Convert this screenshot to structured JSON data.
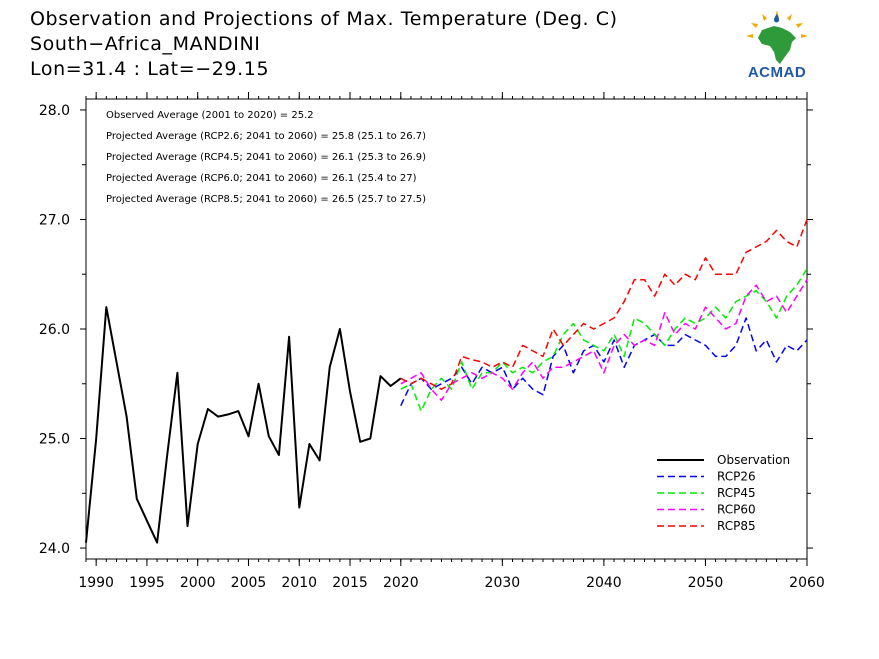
{
  "header": {
    "title_line1": "Observation and Projections of Max. Temperature (Deg. C)",
    "title_line2": "South−Africa_MANDINI",
    "title_line3": "Lon=31.4 : Lat=−29.15"
  },
  "logo": {
    "text": "ACMAD",
    "icon": "acmad-africa-logo-icon"
  },
  "chart_data": {
    "type": "line",
    "xlim": [
      1989,
      2060
    ],
    "ylim": [
      23.9,
      28.1
    ],
    "x_ticks": [
      {
        "value": 1990,
        "label": "1990"
      },
      {
        "value": 1995,
        "label": "1995"
      },
      {
        "value": 2000,
        "label": "2000"
      },
      {
        "value": 2005,
        "label": "2005"
      },
      {
        "value": 2010,
        "label": "2010"
      },
      {
        "value": 2015,
        "label": "2015"
      },
      {
        "value": 2020,
        "label": "2020"
      },
      {
        "value": 2030,
        "label": "2030"
      },
      {
        "value": 2040,
        "label": "2040"
      },
      {
        "value": 2050,
        "label": "2050"
      },
      {
        "value": 2060,
        "label": "2060"
      }
    ],
    "y_ticks": [
      {
        "value": 24,
        "label": "24.0"
      },
      {
        "value": 25,
        "label": "25.0"
      },
      {
        "value": 26,
        "label": "26.0"
      },
      {
        "value": 27,
        "label": "27.0"
      },
      {
        "value": 28,
        "label": "28.0"
      }
    ],
    "annotations": [
      "Observed Average (2001 to 2020) = 25.2",
      "Projected Average (RCP2.6; 2041 to 2060) = 25.8 (25.1 to 26.7)",
      "Projected Average (RCP4.5; 2041 to 2060) = 26.1 (25.3 to 26.9)",
      "Projected Average (RCP6.0; 2041 to 2060) = 26.1 (25.4 to 27)",
      "Projected Average (RCP8.5; 2041 to 2060) = 26.5 (25.7 to 27.5)"
    ],
    "legend_position": "bottom-right",
    "grid": false,
    "series": [
      {
        "name": "Observation",
        "color": "#000000",
        "dashed": false,
        "x": [
          1989,
          1990,
          1991,
          1992,
          1993,
          1994,
          1995,
          1996,
          1997,
          1998,
          1999,
          2000,
          2001,
          2002,
          2003,
          2004,
          2005,
          2006,
          2007,
          2008,
          2009,
          2010,
          2011,
          2012,
          2013,
          2014,
          2015,
          2016,
          2017,
          2018,
          2019,
          2020
        ],
        "y": [
          24.05,
          25.0,
          26.2,
          25.7,
          25.2,
          24.45,
          24.25,
          24.05,
          24.85,
          25.6,
          24.2,
          24.95,
          25.27,
          25.2,
          25.22,
          25.25,
          25.02,
          25.5,
          25.02,
          24.85,
          25.93,
          24.37,
          24.95,
          24.8,
          25.65,
          26.0,
          25.43,
          24.97,
          25.0,
          25.57,
          25.48,
          25.55
        ]
      },
      {
        "name": "RCP26",
        "color": "#0000ff",
        "dashed": true,
        "x": [
          2020,
          2021,
          2022,
          2023,
          2024,
          2025,
          2026,
          2027,
          2028,
          2029,
          2030,
          2031,
          2032,
          2033,
          2034,
          2035,
          2036,
          2037,
          2038,
          2039,
          2040,
          2041,
          2042,
          2043,
          2044,
          2045,
          2046,
          2047,
          2048,
          2049,
          2050,
          2051,
          2052,
          2053,
          2054,
          2055,
          2056,
          2057,
          2058,
          2059,
          2060
        ],
        "y": [
          25.3,
          25.5,
          25.55,
          25.45,
          25.5,
          25.55,
          25.65,
          25.5,
          25.65,
          25.6,
          25.65,
          25.45,
          25.55,
          25.45,
          25.4,
          25.75,
          25.85,
          25.6,
          25.8,
          25.85,
          25.7,
          25.9,
          25.65,
          25.85,
          25.9,
          25.95,
          25.85,
          25.85,
          25.95,
          25.9,
          25.85,
          25.75,
          25.75,
          25.85,
          26.1,
          25.8,
          25.9,
          25.7,
          25.85,
          25.8,
          25.9
        ]
      },
      {
        "name": "RCP45",
        "color": "#00ee00",
        "dashed": true,
        "x": [
          2020,
          2021,
          2022,
          2023,
          2024,
          2025,
          2026,
          2027,
          2028,
          2029,
          2030,
          2031,
          2032,
          2033,
          2034,
          2035,
          2036,
          2037,
          2038,
          2039,
          2040,
          2041,
          2042,
          2043,
          2044,
          2045,
          2046,
          2047,
          2048,
          2049,
          2050,
          2051,
          2052,
          2053,
          2054,
          2055,
          2056,
          2057,
          2058,
          2059,
          2060
        ],
        "y": [
          25.45,
          25.5,
          25.25,
          25.45,
          25.55,
          25.45,
          25.7,
          25.45,
          25.6,
          25.6,
          25.7,
          25.6,
          25.65,
          25.6,
          25.7,
          25.75,
          25.95,
          26.05,
          25.9,
          25.85,
          25.8,
          25.95,
          25.75,
          26.1,
          26.05,
          25.95,
          25.85,
          26.0,
          26.1,
          26.05,
          26.1,
          26.2,
          26.1,
          26.25,
          26.3,
          26.35,
          26.25,
          26.1,
          26.3,
          26.4,
          26.55
        ]
      },
      {
        "name": "RCP60",
        "color": "#ff00ff",
        "dashed": true,
        "x": [
          2020,
          2021,
          2022,
          2023,
          2024,
          2025,
          2026,
          2027,
          2028,
          2029,
          2030,
          2031,
          2032,
          2033,
          2034,
          2035,
          2036,
          2037,
          2038,
          2039,
          2040,
          2041,
          2042,
          2043,
          2044,
          2045,
          2046,
          2047,
          2048,
          2049,
          2050,
          2051,
          2052,
          2053,
          2054,
          2055,
          2056,
          2057,
          2058,
          2059,
          2060
        ],
        "y": [
          25.5,
          25.55,
          25.6,
          25.45,
          25.35,
          25.5,
          25.55,
          25.6,
          25.55,
          25.6,
          25.55,
          25.45,
          25.6,
          25.7,
          25.55,
          25.65,
          25.65,
          25.7,
          25.75,
          25.8,
          25.6,
          25.85,
          25.95,
          25.85,
          25.9,
          25.85,
          26.15,
          25.95,
          26.05,
          26.0,
          26.2,
          26.1,
          26.0,
          26.05,
          26.3,
          26.4,
          26.25,
          26.3,
          26.15,
          26.3,
          26.45
        ]
      },
      {
        "name": "RCP85",
        "color": "#ff0000",
        "dashed": true,
        "x": [
          2020,
          2021,
          2022,
          2023,
          2024,
          2025,
          2026,
          2027,
          2028,
          2029,
          2030,
          2031,
          2032,
          2033,
          2034,
          2035,
          2036,
          2037,
          2038,
          2039,
          2040,
          2041,
          2042,
          2043,
          2044,
          2045,
          2046,
          2047,
          2048,
          2049,
          2050,
          2051,
          2052,
          2053,
          2054,
          2055,
          2056,
          2057,
          2058,
          2059,
          2060
        ],
        "y": [
          25.55,
          25.5,
          25.55,
          25.5,
          25.45,
          25.5,
          25.75,
          25.72,
          25.7,
          25.65,
          25.7,
          25.65,
          25.85,
          25.8,
          25.75,
          26.0,
          25.85,
          25.95,
          26.05,
          26.0,
          26.05,
          26.1,
          26.25,
          26.45,
          26.45,
          26.3,
          26.5,
          26.4,
          26.5,
          26.45,
          26.65,
          26.5,
          26.5,
          26.5,
          26.7,
          26.75,
          26.8,
          26.9,
          26.8,
          26.75,
          27.0
        ]
      }
    ]
  }
}
